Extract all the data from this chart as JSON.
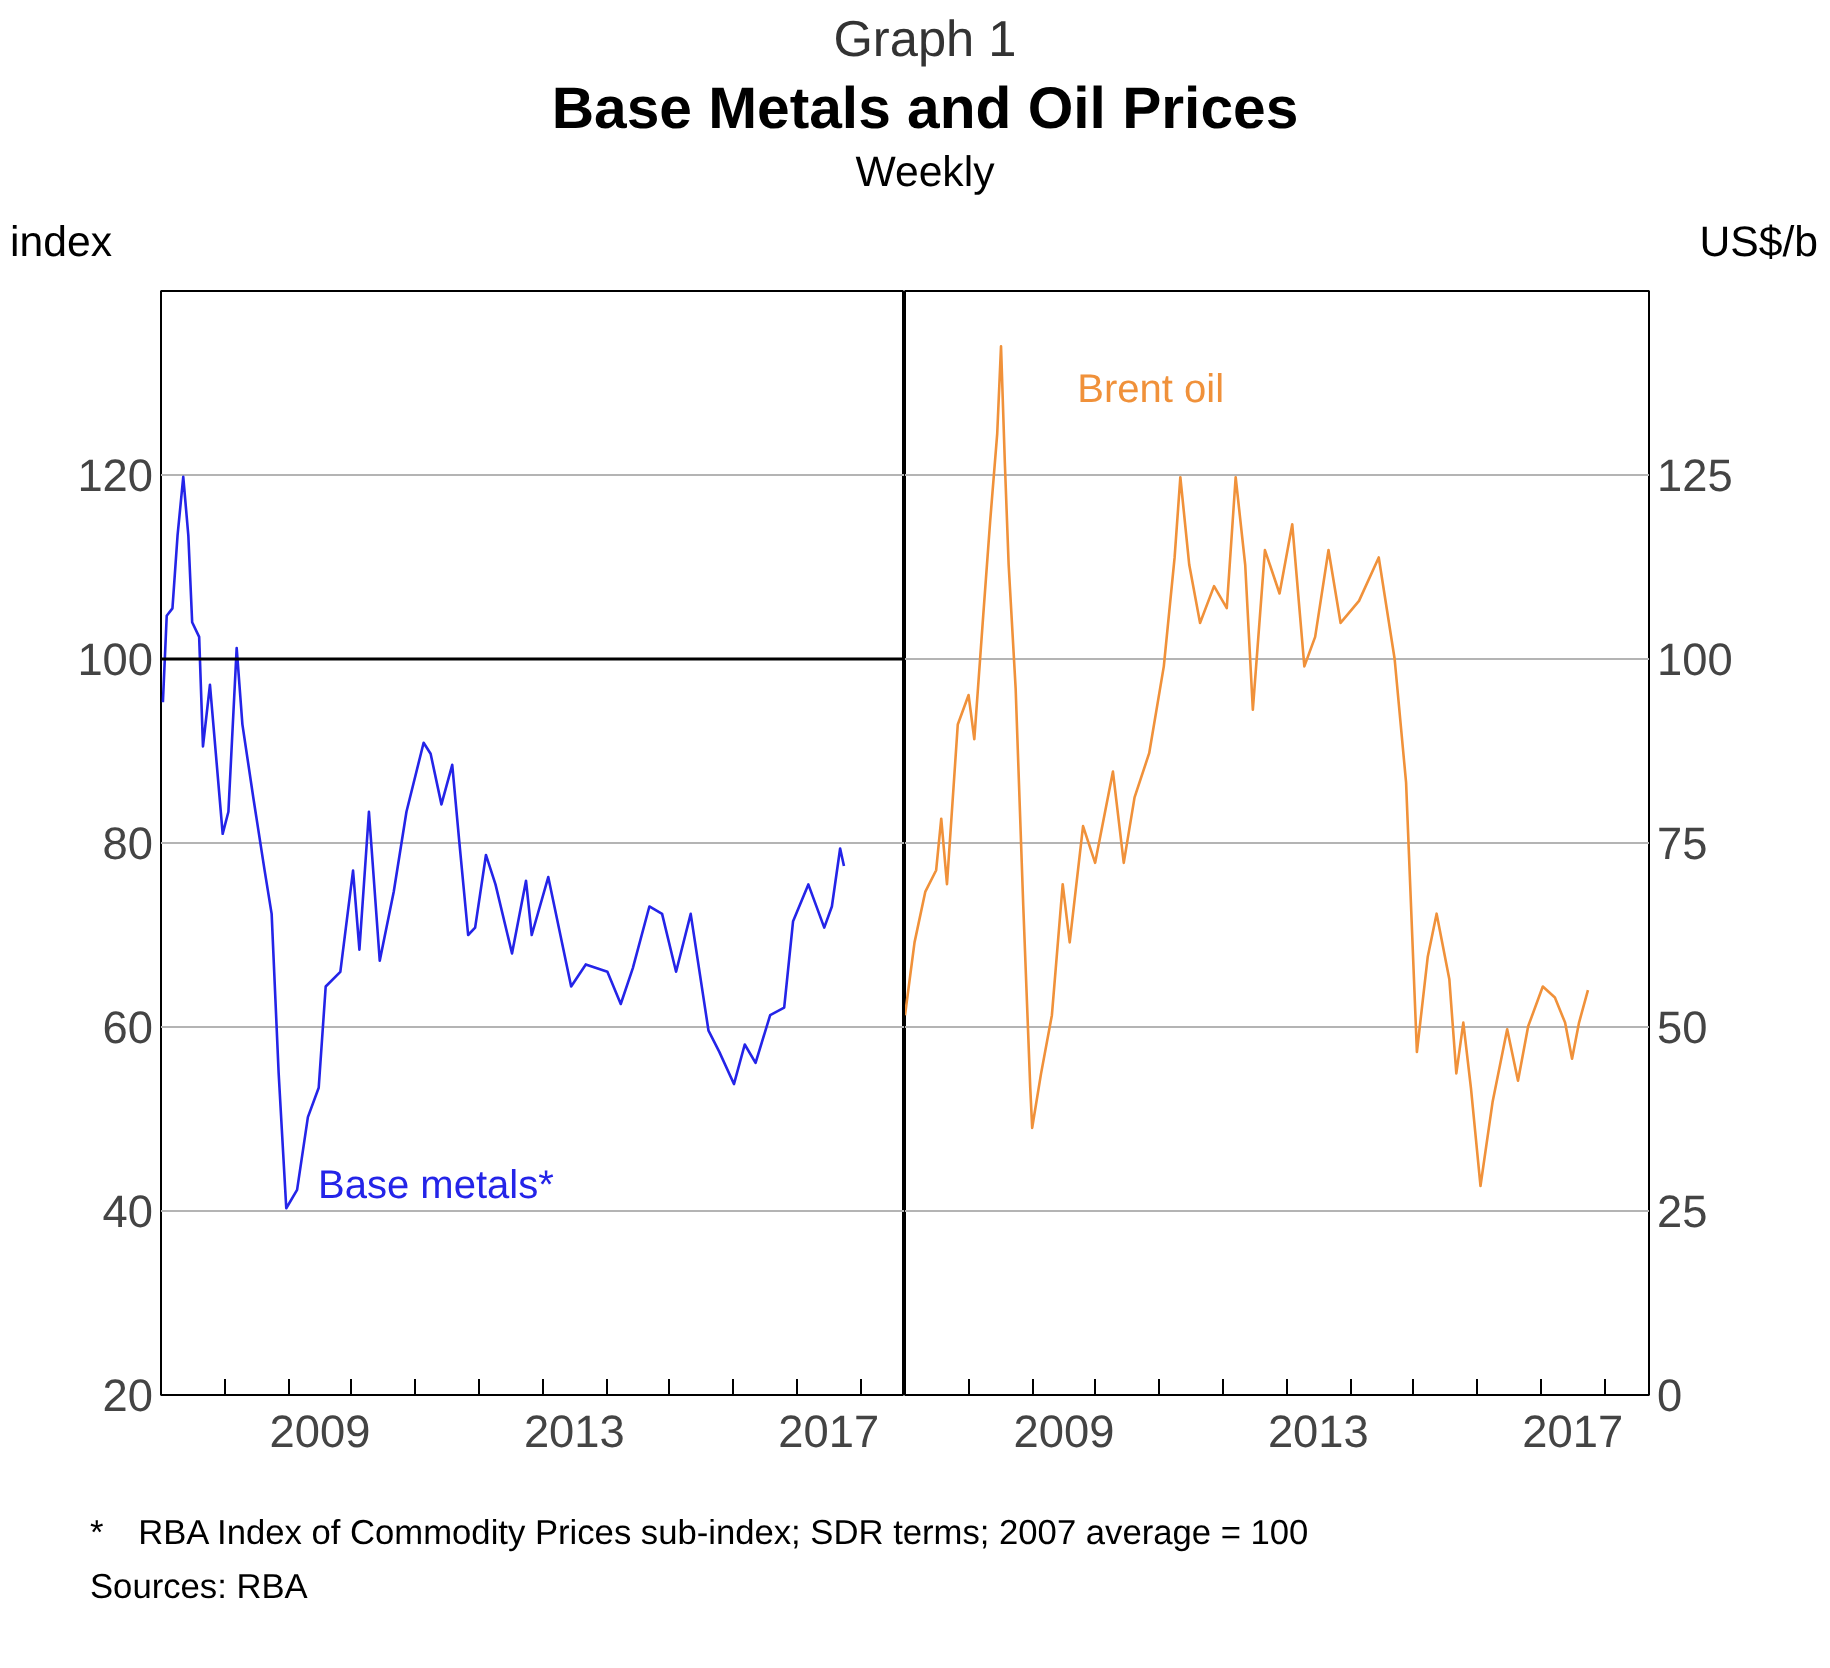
{
  "chart_data": [
    {
      "type": "line",
      "title": "Base Metals and Oil Prices",
      "subtitle": "Weekly",
      "ylabel": "index",
      "annotations": [
        "Graph 1",
        "* RBA Index of Commodity Prices sub-index; SDR terms; 2007 average = 100",
        "Sources: RBA"
      ],
      "xlim": [
        2007.0,
        2018.7
      ],
      "xticks": [
        {
          "value": 2008,
          "label": null
        },
        {
          "value": 2009,
          "label": null
        },
        {
          "value": 2009.5,
          "label": "2009"
        },
        {
          "value": 2010,
          "label": null
        },
        {
          "value": 2011,
          "label": null
        },
        {
          "value": 2012,
          "label": null
        },
        {
          "value": 2013,
          "label": null
        },
        {
          "value": 2013.5,
          "label": "2013"
        },
        {
          "value": 2014,
          "label": null
        },
        {
          "value": 2015,
          "label": null
        },
        {
          "value": 2016,
          "label": null
        },
        {
          "value": 2017,
          "label": null
        },
        {
          "value": 2017.5,
          "label": "2017"
        },
        {
          "value": 2018,
          "label": null
        }
      ],
      "ylim": [
        20,
        140
      ],
      "yticks": [
        20,
        40,
        60,
        80,
        100,
        120
      ],
      "grid": "y",
      "ref_lines": [
        {
          "axis": "y",
          "value": 100,
          "color": "#000000"
        }
      ],
      "series": [
        {
          "name": "Base metals*",
          "color": "#2424e8",
          "x": [
            2007.03,
            2007.09,
            2007.18,
            2007.26,
            2007.35,
            2007.43,
            2007.49,
            2007.6,
            2007.66,
            2007.77,
            2007.97,
            2008.06,
            2008.19,
            2008.28,
            2008.45,
            2008.63,
            2008.74,
            2008.85,
            2008.97,
            2009.14,
            2009.31,
            2009.48,
            2009.59,
            2009.82,
            2010.02,
            2010.12,
            2010.27,
            2010.44,
            2010.66,
            2010.86,
            2011.13,
            2011.24,
            2011.41,
            2011.58,
            2011.69,
            2011.83,
            2011.94,
            2012.11,
            2012.26,
            2012.52,
            2012.74,
            2012.83,
            2013.09,
            2013.45,
            2013.68,
            2014.02,
            2014.23,
            2014.42,
            2014.68,
            2014.88,
            2015.1,
            2015.33,
            2015.61,
            2015.78,
            2016.01,
            2016.18,
            2016.35,
            2016.58,
            2016.8,
            2016.94,
            2017.18,
            2017.43,
            2017.55,
            2017.68,
            2017.74
          ],
          "values": [
            95.3,
            104.7,
            105.5,
            113.4,
            119.8,
            113.4,
            104,
            102.4,
            90.5,
            97.2,
            81,
            83.4,
            101.2,
            92.9,
            85,
            77,
            72.3,
            55,
            40.3,
            42.3,
            50.2,
            53.4,
            64.4,
            66,
            77,
            68.4,
            83.4,
            67.2,
            74.7,
            83.4,
            90.9,
            89.7,
            84.2,
            88.5,
            80.2,
            70,
            70.8,
            78.7,
            75.5,
            68,
            75.9,
            70,
            76.3,
            64.4,
            66.8,
            66,
            62.5,
            66.4,
            73.1,
            72.3,
            66,
            72.3,
            59.6,
            57.3,
            53.8,
            58.1,
            56.1,
            61.3,
            62.1,
            71.5,
            75.5,
            70.8,
            73.1,
            79.4,
            77.5
          ]
        }
      ]
    },
    {
      "type": "line",
      "ylabel": "US$/b",
      "xlim": [
        2007.0,
        2018.7
      ],
      "xticks": [
        {
          "value": 2008,
          "label": null
        },
        {
          "value": 2009,
          "label": null
        },
        {
          "value": 2009.5,
          "label": "2009"
        },
        {
          "value": 2010,
          "label": null
        },
        {
          "value": 2011,
          "label": null
        },
        {
          "value": 2012,
          "label": null
        },
        {
          "value": 2013,
          "label": null
        },
        {
          "value": 2013.5,
          "label": "2013"
        },
        {
          "value": 2014,
          "label": null
        },
        {
          "value": 2015,
          "label": null
        },
        {
          "value": 2016,
          "label": null
        },
        {
          "value": 2017,
          "label": null
        },
        {
          "value": 2017.5,
          "label": "2017"
        },
        {
          "value": 2018,
          "label": null
        }
      ],
      "ylim": [
        0,
        150
      ],
      "yticks": [
        0,
        25,
        50,
        75,
        100,
        125
      ],
      "grid": "y",
      "series": [
        {
          "name": "Brent oil",
          "color": "#f0913a",
          "x": [
            2007.0,
            2007.15,
            2007.32,
            2007.49,
            2007.57,
            2007.66,
            2007.83,
            2008.0,
            2008.09,
            2008.23,
            2008.34,
            2008.45,
            2008.51,
            2008.57,
            2008.63,
            2008.74,
            2008.86,
            2008.97,
            2009.0,
            2009.14,
            2009.31,
            2009.48,
            2009.59,
            2009.8,
            2009.99,
            2010.27,
            2010.44,
            2010.61,
            2010.84,
            2011.07,
            2011.24,
            2011.33,
            2011.47,
            2011.64,
            2011.86,
            2012.06,
            2012.2,
            2012.35,
            2012.47,
            2012.66,
            2012.89,
            2013.09,
            2013.28,
            2013.45,
            2013.66,
            2013.85,
            2014.14,
            2014.45,
            2014.7,
            2014.88,
            2015.05,
            2015.22,
            2015.36,
            2015.56,
            2015.67,
            2015.78,
            2015.9,
            2016.05,
            2016.24,
            2016.47,
            2016.64,
            2016.8,
            2017.03,
            2017.22,
            2017.38,
            2017.49,
            2017.6,
            2017.74
          ],
          "values": [
            51.6,
            61.5,
            68.4,
            71.3,
            78.3,
            69.4,
            91.1,
            95.1,
            89.1,
            105.9,
            118.8,
            130.6,
            142.5,
            126.7,
            112.8,
            96,
            66.4,
            41.7,
            36.3,
            43.7,
            51.6,
            69.4,
            61.5,
            77.3,
            72.3,
            84.7,
            72.3,
            81.2,
            87.2,
            99,
            113.8,
            124.7,
            112.8,
            104.9,
            109.9,
            106.9,
            124.7,
            112.8,
            93.1,
            114.8,
            108.9,
            118.3,
            99,
            103,
            114.8,
            104.9,
            107.9,
            113.8,
            100,
            83.2,
            46.6,
            59.5,
            65.4,
            56.5,
            43.7,
            50.6,
            41.7,
            28.4,
            39.8,
            49.7,
            42.7,
            50.1,
            55.5,
            54,
            50.6,
            45.7,
            50.6,
            55
          ]
        }
      ]
    }
  ]
}
